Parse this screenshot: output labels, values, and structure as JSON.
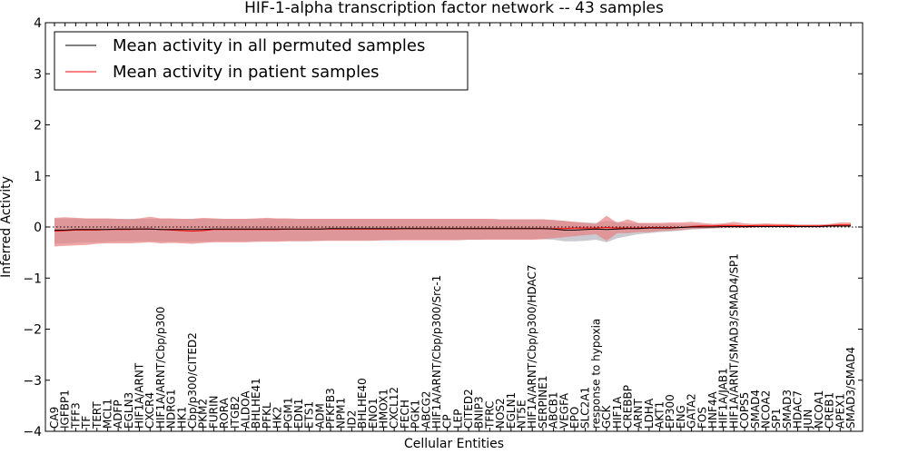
{
  "chart_data": {
    "type": "line",
    "title": "HIF-1-alpha transcription factor network -- 43 samples",
    "xlabel": "Cellular Entities",
    "ylabel": "Inferred Activity",
    "ylim": [
      -4,
      4
    ],
    "yticks": [
      -4,
      -3,
      -2,
      -1,
      0,
      1,
      2,
      3,
      4
    ],
    "legend_position": "top-left",
    "reference_line_y": 0,
    "categories": [
      "CA9",
      "IGFBP1",
      "TFF3",
      "TF",
      "TERT",
      "MCL1",
      "ADFP",
      "EGLN3",
      "HIF1A/ARNT",
      "CXCR4",
      "HIF1A/ARNT/Cbp/p300",
      "NDRG1",
      "HK1",
      "Cbp/p300/CITED2",
      "PKM2",
      "FURIN",
      "RORA",
      "ITGB2",
      "ALDOA",
      "BHLHE41",
      "PFKL",
      "HK2",
      "PGM1",
      "EDN1",
      "ETS1",
      "ADM",
      "PFKFB3",
      "NPM1",
      "ID2",
      "BHLHE40",
      "ENO1",
      "HMOX1",
      "CXCL12",
      "FECH",
      "PGK1",
      "ABCG2",
      "HIF1A/ARNT/Cbp/p300/Src-1",
      "CP",
      "LEP",
      "CITED2",
      "BNIP3",
      "TFRC",
      "NOS2",
      "EGLN1",
      "NT5E",
      "HIF1A/ARNT/Cbp/p300/HDAC7",
      "SERPINE1",
      "ABCB1",
      "VEGFA",
      "EPO",
      "SLC2A1",
      "response to hypoxia",
      "GCK",
      "HIF1A",
      "CREBBP",
      "ARNT",
      "LDHA",
      "AKT1",
      "EP300",
      "ENG",
      "GATA2",
      "FOS",
      "HNF4A",
      "HIF1A/JAB1",
      "HIF1A/ARNT/SMAD3/SMAD4/SP1",
      "COPS5",
      "SMAD4",
      "NCOA2",
      "SP1",
      "SMAD3",
      "HDAC7",
      "JUN",
      "NCOA1",
      "CREB1",
      "APEX1",
      "SMAD3/SMAD4"
    ],
    "series": [
      {
        "name": "Mean activity in all permuted samples",
        "color": "#000000",
        "band_color": "#b8b8c0",
        "values": [
          -0.06,
          -0.06,
          -0.05,
          -0.05,
          -0.05,
          -0.05,
          -0.04,
          -0.04,
          -0.04,
          -0.04,
          -0.05,
          -0.05,
          -0.05,
          -0.05,
          -0.05,
          -0.04,
          -0.04,
          -0.04,
          -0.04,
          -0.04,
          -0.04,
          -0.04,
          -0.04,
          -0.04,
          -0.04,
          -0.04,
          -0.03,
          -0.03,
          -0.03,
          -0.03,
          -0.03,
          -0.03,
          -0.03,
          -0.03,
          -0.03,
          -0.03,
          -0.03,
          -0.03,
          -0.03,
          -0.03,
          -0.03,
          -0.03,
          -0.03,
          -0.03,
          -0.03,
          -0.03,
          -0.03,
          -0.04,
          -0.06,
          -0.06,
          -0.05,
          -0.04,
          -0.05,
          -0.04,
          -0.03,
          -0.03,
          -0.02,
          -0.02,
          -0.02,
          -0.01,
          0.0,
          0.0,
          0.0,
          0.01,
          0.01,
          0.01,
          0.01,
          0.01,
          0.01,
          0.01,
          0.01,
          0.01,
          0.01,
          0.02,
          0.02,
          0.02
        ],
        "lower": [
          -0.33,
          -0.32,
          -0.31,
          -0.3,
          -0.3,
          -0.29,
          -0.28,
          -0.28,
          -0.28,
          -0.28,
          -0.29,
          -0.29,
          -0.29,
          -0.29,
          -0.29,
          -0.28,
          -0.28,
          -0.28,
          -0.28,
          -0.28,
          -0.27,
          -0.27,
          -0.27,
          -0.27,
          -0.27,
          -0.27,
          -0.26,
          -0.26,
          -0.26,
          -0.26,
          -0.26,
          -0.26,
          -0.26,
          -0.25,
          -0.25,
          -0.25,
          -0.25,
          -0.25,
          -0.25,
          -0.25,
          -0.25,
          -0.24,
          -0.24,
          -0.24,
          -0.24,
          -0.24,
          -0.24,
          -0.25,
          -0.28,
          -0.28,
          -0.27,
          -0.25,
          -0.3,
          -0.22,
          -0.18,
          -0.14,
          -0.12,
          -0.1,
          -0.09,
          -0.07,
          -0.05,
          -0.04,
          -0.03,
          -0.02,
          -0.02,
          -0.02,
          -0.01,
          -0.01,
          -0.01,
          -0.01,
          -0.01,
          -0.01,
          -0.01,
          0.0,
          0.0,
          0.0
        ],
        "upper": [
          0.17,
          0.17,
          0.17,
          0.16,
          0.16,
          0.16,
          0.16,
          0.16,
          0.16,
          0.16,
          0.16,
          0.16,
          0.16,
          0.16,
          0.16,
          0.16,
          0.16,
          0.16,
          0.16,
          0.16,
          0.16,
          0.16,
          0.16,
          0.16,
          0.16,
          0.16,
          0.16,
          0.16,
          0.16,
          0.16,
          0.16,
          0.16,
          0.16,
          0.16,
          0.16,
          0.16,
          0.16,
          0.16,
          0.16,
          0.16,
          0.16,
          0.16,
          0.15,
          0.15,
          0.15,
          0.15,
          0.15,
          0.13,
          0.12,
          0.1,
          0.09,
          0.08,
          0.12,
          0.1,
          0.08,
          0.07,
          0.07,
          0.06,
          0.06,
          0.05,
          0.05,
          0.05,
          0.05,
          0.05,
          0.04,
          0.04,
          0.04,
          0.04,
          0.04,
          0.04,
          0.04,
          0.04,
          0.04,
          0.04,
          0.04,
          0.04
        ]
      },
      {
        "name": "Mean activity in patient samples",
        "color": "#ff0000",
        "band_color": "#e88080",
        "values": [
          -0.08,
          -0.07,
          -0.06,
          -0.06,
          -0.06,
          -0.05,
          -0.05,
          -0.05,
          -0.04,
          -0.04,
          -0.05,
          -0.06,
          -0.07,
          -0.08,
          -0.07,
          -0.05,
          -0.05,
          -0.05,
          -0.05,
          -0.05,
          -0.05,
          -0.05,
          -0.04,
          -0.04,
          -0.04,
          -0.04,
          -0.04,
          -0.04,
          -0.04,
          -0.04,
          -0.04,
          -0.04,
          -0.04,
          -0.03,
          -0.03,
          -0.03,
          -0.03,
          -0.03,
          -0.03,
          -0.03,
          -0.03,
          -0.03,
          -0.03,
          -0.03,
          -0.03,
          -0.03,
          -0.03,
          -0.03,
          -0.03,
          -0.02,
          -0.02,
          -0.02,
          -0.01,
          -0.02,
          -0.02,
          -0.02,
          -0.01,
          -0.01,
          -0.01,
          -0.01,
          0.01,
          0.02,
          0.02,
          0.03,
          0.03,
          0.02,
          0.03,
          0.03,
          0.03,
          0.03,
          0.02,
          0.02,
          0.02,
          0.03,
          0.04,
          0.04
        ],
        "lower": [
          -0.38,
          -0.37,
          -0.36,
          -0.35,
          -0.33,
          -0.32,
          -0.32,
          -0.32,
          -0.31,
          -0.3,
          -0.32,
          -0.31,
          -0.32,
          -0.33,
          -0.31,
          -0.3,
          -0.3,
          -0.3,
          -0.3,
          -0.29,
          -0.29,
          -0.29,
          -0.28,
          -0.28,
          -0.28,
          -0.27,
          -0.27,
          -0.27,
          -0.27,
          -0.27,
          -0.27,
          -0.26,
          -0.26,
          -0.26,
          -0.26,
          -0.26,
          -0.26,
          -0.26,
          -0.26,
          -0.25,
          -0.25,
          -0.25,
          -0.25,
          -0.25,
          -0.25,
          -0.25,
          -0.24,
          -0.22,
          -0.2,
          -0.18,
          -0.16,
          -0.14,
          -0.27,
          -0.12,
          -0.12,
          -0.1,
          -0.1,
          -0.08,
          -0.07,
          -0.06,
          -0.04,
          -0.03,
          -0.02,
          -0.02,
          -0.01,
          -0.02,
          -0.01,
          0.0,
          0.0,
          -0.01,
          -0.01,
          -0.01,
          -0.01,
          0.0,
          0.01,
          0.01
        ],
        "upper": [
          0.18,
          0.19,
          0.18,
          0.17,
          0.17,
          0.17,
          0.16,
          0.15,
          0.17,
          0.2,
          0.17,
          0.17,
          0.16,
          0.16,
          0.18,
          0.17,
          0.16,
          0.16,
          0.16,
          0.17,
          0.18,
          0.17,
          0.17,
          0.16,
          0.16,
          0.16,
          0.16,
          0.16,
          0.16,
          0.16,
          0.16,
          0.16,
          0.16,
          0.16,
          0.16,
          0.16,
          0.16,
          0.16,
          0.16,
          0.16,
          0.16,
          0.16,
          0.15,
          0.15,
          0.15,
          0.15,
          0.15,
          0.14,
          0.12,
          0.1,
          0.08,
          0.06,
          0.22,
          0.08,
          0.15,
          0.08,
          0.08,
          0.08,
          0.09,
          0.09,
          0.1,
          0.08,
          0.06,
          0.07,
          0.1,
          0.07,
          0.06,
          0.07,
          0.06,
          0.06,
          0.05,
          0.05,
          0.05,
          0.06,
          0.09,
          0.09
        ]
      }
    ]
  }
}
